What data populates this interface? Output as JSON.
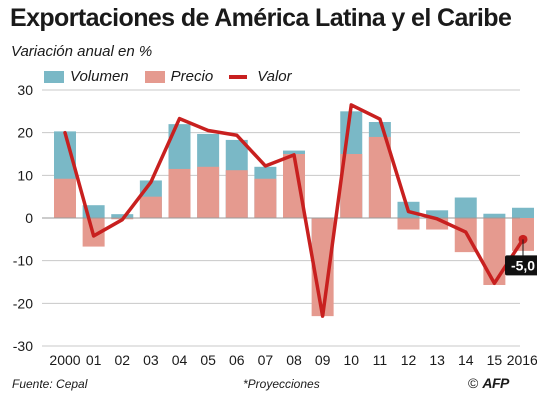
{
  "title": "Exportaciones de América Latina y el Caribe",
  "subtitle": "Variación anual en %",
  "colors": {
    "volumen": "#7ab8c6",
    "precio": "#e59a8f",
    "valor": "#c8201f",
    "grid": "#c8c8c8"
  },
  "legend": [
    {
      "label": "Volumen",
      "kind": "bar",
      "color_key": "volumen"
    },
    {
      "label": "Precio",
      "kind": "bar",
      "color_key": "precio"
    },
    {
      "label": "Valor",
      "kind": "line",
      "color_key": "valor"
    }
  ],
  "chart_data": {
    "type": "bar",
    "categories": [
      "2000",
      "01",
      "02",
      "03",
      "04",
      "05",
      "06",
      "07",
      "08",
      "09",
      "10",
      "11",
      "12",
      "13",
      "14",
      "15",
      "2016*"
    ],
    "series": [
      {
        "name": "Volumen",
        "values": [
          20.3,
          3.0,
          0.9,
          8.8,
          22.0,
          19.7,
          18.3,
          12.0,
          15.8,
          -12.0,
          25.0,
          22.5,
          3.8,
          1.8,
          4.8,
          1.0,
          2.4
        ]
      },
      {
        "name": "Precio",
        "values": [
          9.2,
          -6.7,
          -0.3,
          5.0,
          11.5,
          12.0,
          11.2,
          9.2,
          15.0,
          -23.0,
          15.0,
          19.0,
          -2.7,
          -2.7,
          -8.0,
          -15.7,
          -7.7
        ]
      },
      {
        "name": "Valor",
        "values": [
          20.0,
          -4.2,
          -0.4,
          8.4,
          23.3,
          20.5,
          19.4,
          12.2,
          14.8,
          -23.0,
          26.5,
          23.2,
          1.5,
          -0.2,
          -3.3,
          -15.3,
          -5.0
        ]
      }
    ],
    "ylim": [
      -30,
      30
    ],
    "yticks": [
      30,
      20,
      10,
      0,
      -10,
      -20,
      -30
    ],
    "grid": true,
    "legend_position": "top-left",
    "annotation": {
      "category_index": 16,
      "text": "-5,0"
    }
  },
  "footer": {
    "source": "Fuente: Cepal",
    "note": "*Proyecciones",
    "copyright": "©",
    "agency": "AFP"
  }
}
